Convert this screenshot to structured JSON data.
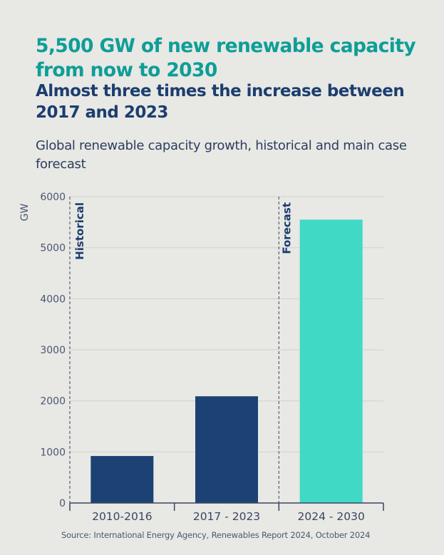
{
  "header": {
    "title": "5,500 GW of new renewable capacity from now to 2030",
    "subtitle": "Almost three times the increase between 2017 and 2023",
    "caption": "Global renewable capacity growth, historical and main case forecast"
  },
  "source": "Source: International Energy Agency, Renewables Report 2024, October 2024",
  "colors": {
    "title": "#0e9e97",
    "subtitle": "#1c3e6e",
    "historical_bar": "#1c4273",
    "forecast_bar": "#40d9c5",
    "background": "#e8e8e5"
  },
  "chart_data": {
    "type": "bar",
    "title": "Global renewable capacity growth, historical and main case forecast",
    "xlabel": "",
    "ylabel": "GW",
    "ylim": [
      0,
      6000
    ],
    "yticks": [
      0,
      1000,
      2000,
      3000,
      4000,
      5000,
      6000
    ],
    "grid": true,
    "categories": [
      "2010-2016",
      "2017 - 2023",
      "2024 - 2030"
    ],
    "values": [
      920,
      2090,
      5550
    ],
    "bar_groups": [
      "historical",
      "historical",
      "forecast"
    ],
    "annotations": [
      {
        "text": "Historical",
        "position": "before-first-category"
      },
      {
        "text": "Forecast",
        "position": "before-third-category"
      }
    ],
    "legend": "none"
  }
}
